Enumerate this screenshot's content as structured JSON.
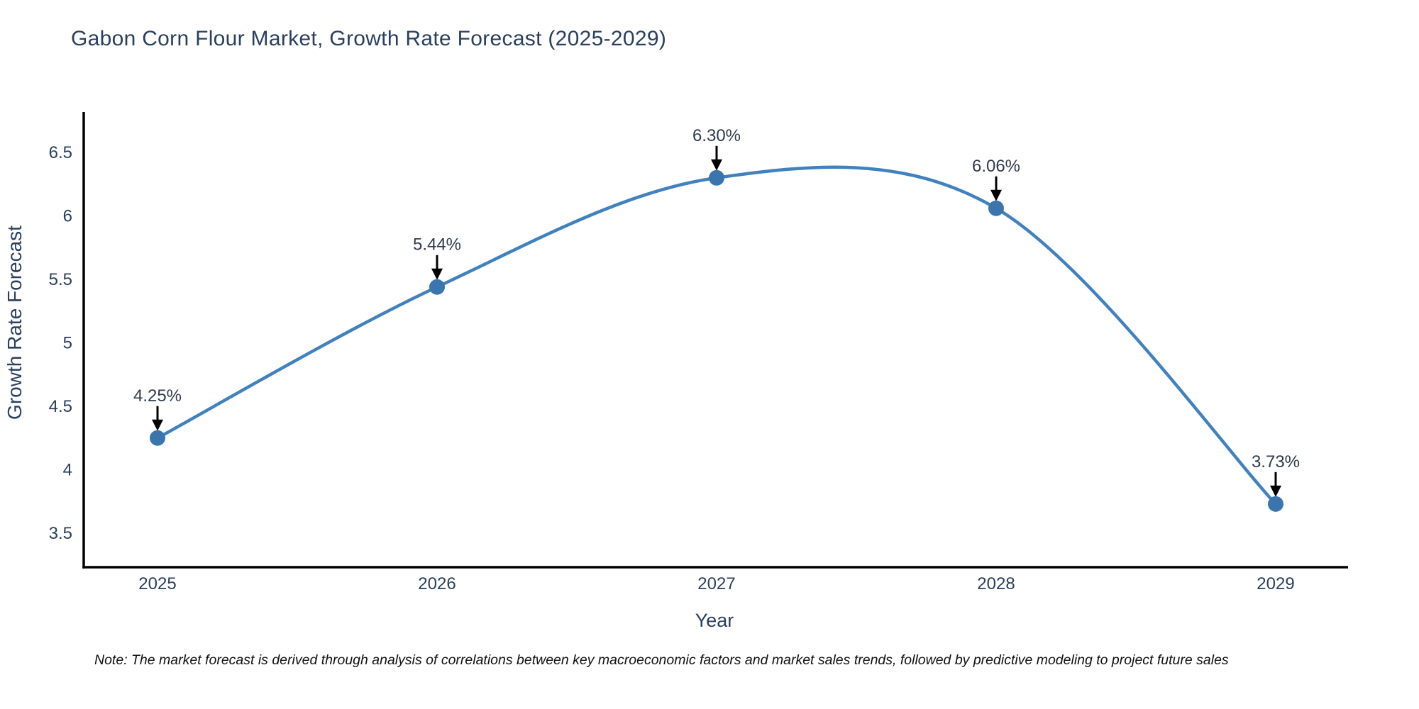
{
  "page": {
    "title": "Gabon Corn Flour Market, Growth Rate Forecast (2025-2029)",
    "note": "Note: The market forecast is derived through analysis of correlations between key macroeconomic factors and market sales trends, followed by predictive modeling to project future sales"
  },
  "chart_data": {
    "type": "line",
    "title": "Gabon Corn Flour Market, Growth Rate Forecast (2025-2029)",
    "xlabel": "Year",
    "ylabel": "Growth Rate Forecast",
    "categories": [
      "2025",
      "2026",
      "2027",
      "2028",
      "2029"
    ],
    "series": [
      {
        "name": "Growth Rate Forecast",
        "values": [
          4.25,
          5.44,
          6.3,
          6.06,
          3.73
        ],
        "point_labels": [
          "4.25%",
          "5.44%",
          "6.30%",
          "6.06%",
          "3.73%"
        ]
      }
    ],
    "line_shape": "spline",
    "markers": true,
    "grid": false,
    "legend_position": "none",
    "ylim": [
      3.23,
      6.84
    ],
    "yticks": [
      3.5,
      4,
      4.5,
      5,
      5.5,
      6,
      6.5
    ],
    "ytick_labels": [
      "3.5",
      "4",
      "4.5",
      "5",
      "5.5",
      "6",
      "6.5"
    ],
    "colors": {
      "line": "#4181bd",
      "marker": "#3a76ad",
      "axis": "#000000",
      "text": "#2a3f5f",
      "annotation": "#2f3b4c",
      "arrow": "#000000"
    }
  }
}
